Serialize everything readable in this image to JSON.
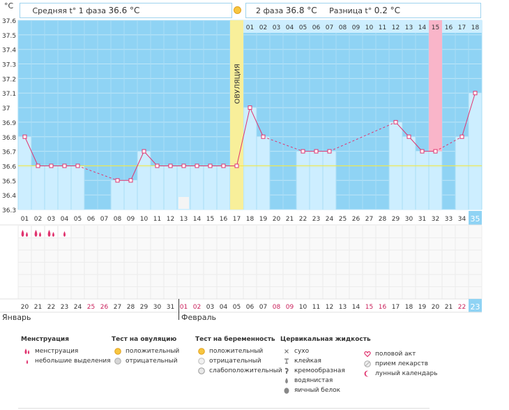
{
  "chart_data": {
    "type": "line",
    "unit_label": "°C",
    "ylim": [
      36.3,
      37.6
    ],
    "y_ticks": [
      "37.6",
      "37.5",
      "37.4",
      "37.3",
      "37.2",
      "37.1",
      "37",
      "36.9",
      "36.8",
      "36.7",
      "36.6",
      "36.5",
      "36.4",
      "36.3"
    ],
    "cycle_days": [
      "01",
      "02",
      "03",
      "04",
      "05",
      "06",
      "07",
      "08",
      "09",
      "10",
      "11",
      "12",
      "13",
      "14",
      "15",
      "16",
      "17",
      "18",
      "19",
      "20",
      "21",
      "22",
      "23",
      "24",
      "25",
      "26",
      "27",
      "28",
      "29",
      "30",
      "31",
      "32",
      "33",
      "34",
      "35"
    ],
    "calendar_dates": [
      "20",
      "21",
      "22",
      "23",
      "24",
      "25",
      "26",
      "27",
      "28",
      "29",
      "30",
      "31",
      "01",
      "02",
      "03",
      "04",
      "05",
      "06",
      "07",
      "08",
      "09",
      "10",
      "11",
      "12",
      "13",
      "14",
      "15",
      "16",
      "17",
      "18",
      "19",
      "20",
      "21",
      "22",
      "23"
    ],
    "weekend_days": [
      6,
      7,
      13,
      14,
      20,
      21,
      27,
      28,
      34
    ],
    "phase2_numbers": [
      "01",
      "02",
      "03",
      "04",
      "05",
      "06",
      "07",
      "08",
      "09",
      "10",
      "11",
      "12",
      "13",
      "14",
      "15",
      "16",
      "17",
      "18"
    ],
    "temperatures": [
      36.8,
      36.6,
      36.6,
      36.6,
      36.6,
      null,
      null,
      36.5,
      36.5,
      36.7,
      36.6,
      36.6,
      36.6,
      36.6,
      36.6,
      36.6,
      36.6,
      37.0,
      36.8,
      null,
      null,
      36.7,
      36.7,
      36.7,
      null,
      null,
      null,
      null,
      36.9,
      36.8,
      36.7,
      36.7,
      null,
      36.8,
      37.1
    ],
    "coverline": 36.6,
    "ovulation_day": 17,
    "ovulation_label": "ОВУЛЯЦИЯ",
    "highlight_day": 32,
    "current_day": 35,
    "lunar_marker_day": 13,
    "menstruation_days": [
      1,
      2,
      3,
      4
    ],
    "light_spotting_days": [
      4
    ],
    "phase1_label": "Средняя t° 1 фаза",
    "phase1_avg": "36.6 °C",
    "phase2_label": "2 фаза",
    "phase2_avg": "36.8 °C",
    "diff_label": "Разница t°",
    "diff_value": "0.2 °C",
    "month1": "Январь",
    "month2": "Февраль",
    "colors": {
      "band": "#8fd3f4",
      "bar": "#cdeeff",
      "line": "#e0346f",
      "coverline": "#f0e84a",
      "ovulation": "#f8ef9a",
      "highlight": "#f9b5c9",
      "current": "#8fd3f4",
      "weekend_text": "#c91f5a"
    }
  },
  "legend": {
    "menstruation": {
      "title": "Менструация",
      "items": [
        "менструация",
        "небольшие выделения"
      ]
    },
    "ovulation_test": {
      "title": "Тест на овуляцию",
      "items": [
        "положительный",
        "отрицательный"
      ]
    },
    "pregnancy_test": {
      "title": "Тест на беременность",
      "items": [
        "положительный",
        "отрицательный",
        "слабоположительный"
      ]
    },
    "cervical_fluid": {
      "title": "Цервикальная жидкость",
      "items": [
        "сухо",
        "клейкая",
        "кремообразная",
        "водянистая",
        "яичный белок"
      ]
    },
    "other": {
      "items": [
        "половой акт",
        "прием лекарств",
        "лунный календарь"
      ]
    }
  }
}
